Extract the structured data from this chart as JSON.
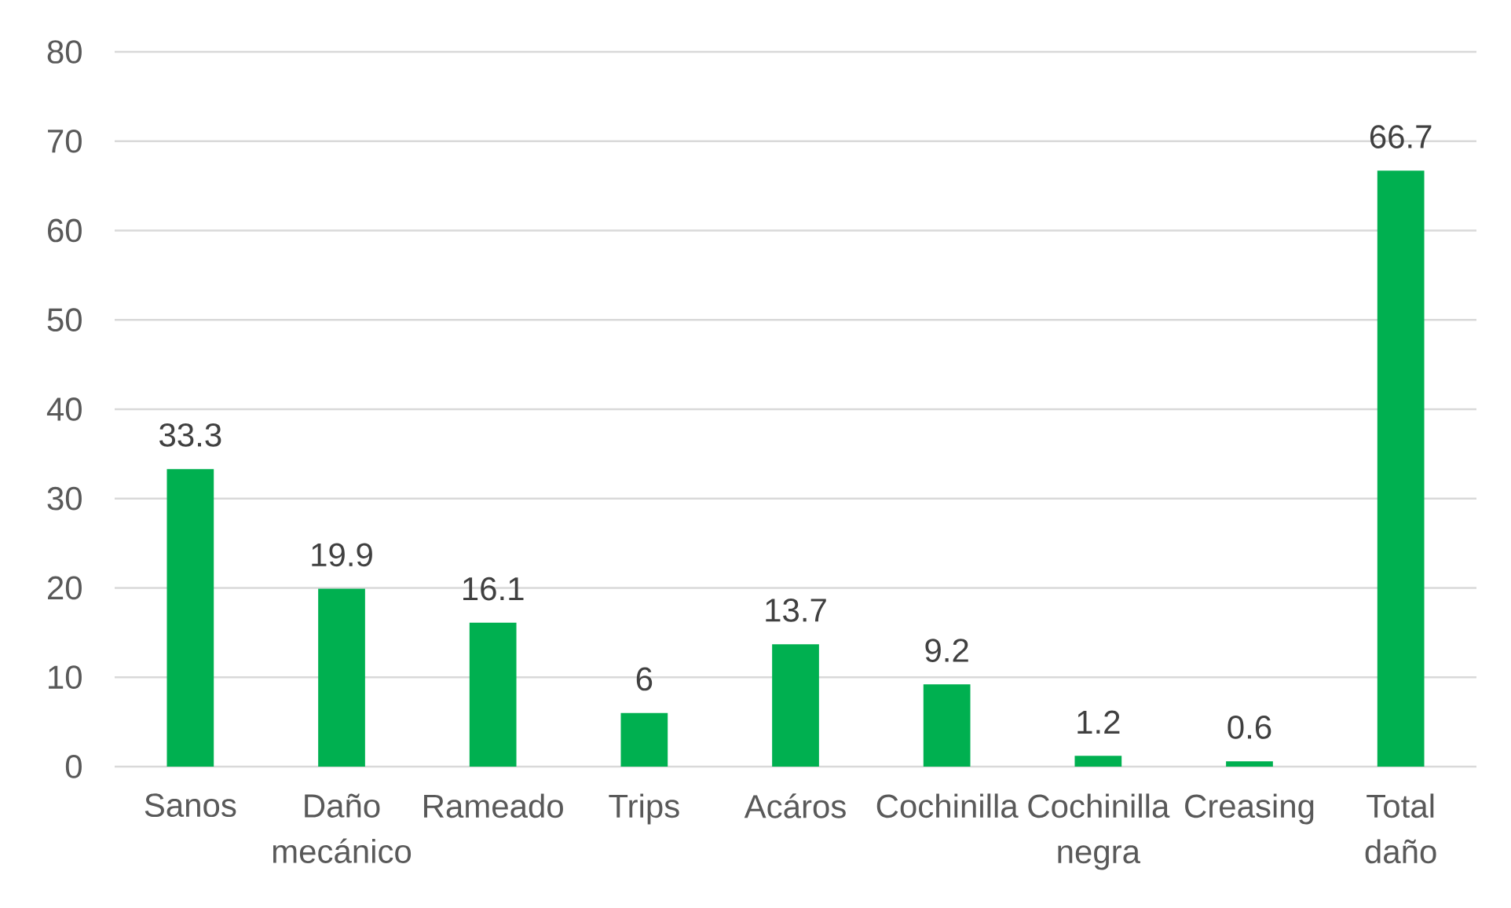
{
  "chart_data": {
    "type": "bar",
    "categories": [
      "Sanos",
      "Daño mecánico",
      "Rameado",
      "Trips",
      "Acáros",
      "Cochinilla",
      "Cochinilla negra",
      "Creasing",
      "Total daño"
    ],
    "values": [
      33.3,
      19.9,
      16.1,
      6,
      13.7,
      9.2,
      1.2,
      0.6,
      66.7
    ],
    "color": "#00b050",
    "ylim": [
      0,
      80
    ],
    "yticks": [
      0,
      10,
      20,
      30,
      40,
      50,
      60,
      70,
      80
    ],
    "grid": "y",
    "data_labels": true
  }
}
